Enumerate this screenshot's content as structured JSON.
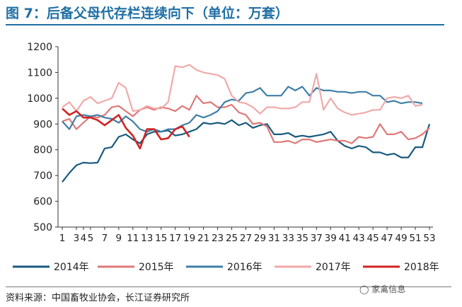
{
  "title": "图 7：后备父母代存栏连续向下（单位：万套）",
  "source": "资料来源：中国畜牧业协会，长江证券研究所",
  "watermark": "家禽信息",
  "chart_data": {
    "type": "line",
    "ylim": [
      500,
      1200
    ],
    "yticks": [
      500,
      600,
      700,
      800,
      900,
      1000,
      1100,
      1200
    ],
    "xlim": [
      1,
      53
    ],
    "xticks": [
      1,
      3,
      4,
      5,
      7,
      9,
      11,
      13,
      15,
      17,
      19,
      21,
      23,
      25,
      27,
      29,
      31,
      33,
      35,
      37,
      39,
      41,
      43,
      45,
      47,
      49,
      51,
      53
    ],
    "xtick_labels": [
      "1",
      "3",
      "4",
      "5",
      "7",
      "9",
      "11",
      "13",
      "15",
      "17",
      "19",
      "21",
      "23",
      "25",
      "27",
      "29",
      "31",
      "33",
      "35",
      "37",
      "39",
      "41",
      "43",
      "45",
      "47",
      "49",
      "51",
      "53"
    ],
    "grid": false,
    "legend_position": "bottom",
    "series": [
      {
        "name": "2014年",
        "color": "#1a5a7e",
        "x": [
          1,
          2,
          3,
          4,
          5,
          6,
          7,
          8,
          9,
          10,
          11,
          12,
          13,
          14,
          15,
          16,
          17,
          18,
          19,
          20,
          21,
          22,
          23,
          24,
          25,
          26,
          27,
          28,
          29,
          30,
          31,
          32,
          33,
          34,
          35,
          36,
          37,
          38,
          39,
          40,
          41,
          42,
          43,
          44,
          45,
          46,
          47,
          48,
          49,
          50,
          51,
          52,
          53
        ],
        "values": [
          675,
          710,
          740,
          750,
          748,
          750,
          805,
          810,
          850,
          860,
          840,
          825,
          860,
          870,
          870,
          875,
          855,
          860,
          870,
          880,
          905,
          900,
          905,
          900,
          915,
          895,
          905,
          885,
          895,
          900,
          860,
          860,
          865,
          850,
          855,
          850,
          855,
          860,
          870,
          835,
          815,
          805,
          815,
          810,
          790,
          790,
          780,
          785,
          770,
          770,
          810,
          810,
          900
        ]
      },
      {
        "name": "2015年",
        "color": "#e07878",
        "x": [
          1,
          2,
          3,
          4,
          5,
          6,
          7,
          8,
          9,
          10,
          11,
          12,
          13,
          14,
          15,
          16,
          17,
          18,
          19,
          20,
          21,
          22,
          23,
          24,
          25,
          26,
          27,
          28,
          29,
          30,
          31,
          32,
          33,
          34,
          35,
          36,
          37,
          38,
          39,
          40,
          41,
          42,
          43,
          44,
          45,
          46,
          47,
          48,
          49,
          50,
          51,
          52,
          53
        ],
        "values": [
          910,
          920,
          880,
          905,
          930,
          925,
          935,
          965,
          970,
          950,
          930,
          955,
          965,
          955,
          965,
          960,
          950,
          970,
          955,
          1010,
          980,
          985,
          965,
          965,
          975,
          945,
          935,
          900,
          905,
          890,
          830,
          830,
          835,
          825,
          840,
          840,
          830,
          835,
          840,
          835,
          835,
          825,
          850,
          845,
          850,
          900,
          860,
          860,
          870,
          840,
          845,
          860,
          885
        ]
      },
      {
        "name": "2016年",
        "color": "#3f7fa6",
        "x": [
          1,
          2,
          3,
          4,
          5,
          6,
          7,
          8,
          9,
          10,
          11,
          12,
          13,
          14,
          15,
          16,
          17,
          18,
          19,
          20,
          21,
          22,
          23,
          24,
          25,
          26,
          27,
          28,
          29,
          30,
          31,
          32,
          33,
          34,
          35,
          36,
          37,
          38,
          39,
          40,
          41,
          42,
          43,
          44,
          45,
          46,
          47,
          48,
          49,
          50,
          51,
          52
        ],
        "values": [
          910,
          880,
          930,
          935,
          930,
          935,
          925,
          920,
          905,
          930,
          910,
          880,
          870,
          880,
          870,
          880,
          880,
          895,
          905,
          935,
          925,
          935,
          950,
          985,
          995,
          990,
          1020,
          1025,
          1040,
          1010,
          1010,
          1010,
          1045,
          1030,
          1045,
          1010,
          1040,
          1030,
          1030,
          1025,
          1025,
          1020,
          1025,
          1025,
          1010,
          1010,
          985,
          990,
          980,
          985,
          985,
          980
        ]
      },
      {
        "name": "2017年",
        "color": "#f1a9a9",
        "x": [
          1,
          2,
          3,
          4,
          5,
          6,
          7,
          8,
          9,
          10,
          11,
          12,
          13,
          14,
          15,
          16,
          17,
          18,
          19,
          20,
          21,
          22,
          23,
          24,
          25,
          26,
          27,
          28,
          29,
          30,
          31,
          32,
          33,
          34,
          35,
          36,
          37,
          38,
          39,
          40,
          41,
          42,
          43,
          44,
          45,
          46,
          47,
          48,
          49,
          50,
          51,
          52
        ],
        "values": [
          965,
          985,
          950,
          990,
          1005,
          980,
          990,
          1000,
          1060,
          1040,
          950,
          955,
          970,
          960,
          960,
          985,
          1125,
          1120,
          1130,
          1110,
          1100,
          1095,
          1090,
          1075,
          1010,
          985,
          980,
          965,
          940,
          965,
          965,
          960,
          960,
          965,
          985,
          985,
          1095,
          955,
          1000,
          960,
          945,
          935,
          940,
          945,
          955,
          955,
          1000,
          1005,
          1000,
          1010,
          970,
          975
        ]
      },
      {
        "name": "2018年",
        "color": "#d02323",
        "x": [
          1,
          2,
          3,
          4,
          5,
          6,
          7,
          8,
          9,
          10,
          11,
          12,
          13,
          14,
          15,
          16,
          17,
          18,
          19
        ],
        "values": [
          960,
          935,
          950,
          925,
          925,
          915,
          895,
          915,
          935,
          885,
          855,
          805,
          880,
          880,
          840,
          845,
          880,
          890,
          850
        ]
      }
    ]
  }
}
